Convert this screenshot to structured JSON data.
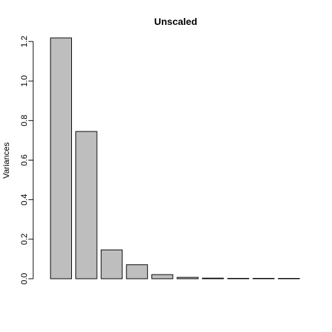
{
  "chart_data": {
    "type": "bar",
    "title": "Unscaled",
    "xlabel": "",
    "ylabel": "Variances",
    "ylim": [
      0,
      1.2
    ],
    "yticks": [
      "0.0",
      "0.2",
      "0.4",
      "0.6",
      "0.8",
      "1.0",
      "1.2"
    ],
    "ytick_values": [
      0,
      0.2,
      0.4,
      0.6,
      0.8,
      1.0,
      1.2
    ],
    "values": [
      1.218,
      0.745,
      0.146,
      0.071,
      0.021,
      0.007,
      0.003,
      0.002,
      0.002,
      0.0005
    ],
    "grid": false,
    "legend": "none",
    "colors": {
      "bar_fill": "#bebebe",
      "bar_stroke": "#000000",
      "axis": "#000000",
      "text": "#000000",
      "background": "#ffffff"
    }
  }
}
